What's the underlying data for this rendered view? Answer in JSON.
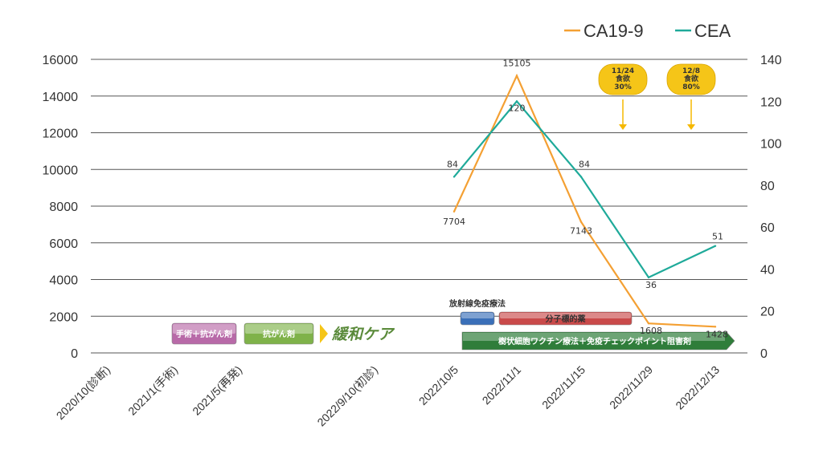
{
  "chart_data": {
    "type": "line",
    "categories": [
      "2020/10(診断)",
      "2021/1(手術)",
      "2021/5(再発)",
      "2022/9/10(初診)",
      "2022/10/5",
      "2022/11/1",
      "2022/11/15",
      "2022/11/29",
      "2022/12/13"
    ],
    "series": [
      {
        "name": "CA19-9",
        "axis": "left",
        "color": "#f4a033",
        "values": [
          null,
          null,
          null,
          null,
          7704,
          15105,
          7143,
          1608,
          1428
        ]
      },
      {
        "name": "CEA",
        "axis": "right",
        "color": "#1faa9a",
        "values": [
          null,
          null,
          null,
          null,
          84,
          120,
          84,
          36,
          51
        ]
      }
    ],
    "ylim_left": [
      0,
      16000
    ],
    "yticks_left": [
      "0",
      "2000",
      "4000",
      "6000",
      "8000",
      "10000",
      "12000",
      "14000",
      "16000"
    ],
    "ylim_right": [
      0,
      140
    ],
    "yticks_right": [
      "0",
      "20",
      "40",
      "60",
      "80",
      "100",
      "120",
      "140"
    ],
    "grid": true,
    "legend_position": "top-right",
    "annotations": [
      {
        "category": "2022/11/22",
        "lines": [
          "11/24",
          "食欲",
          "30%"
        ],
        "color": "#f5c518"
      },
      {
        "category": "2022/12/6",
        "lines": [
          "12/8",
          "食欲",
          "80%"
        ],
        "color": "#f5c518"
      }
    ],
    "treatment_bars": [
      {
        "label": "手術＋抗がん剤",
        "color": "#b86aa8"
      },
      {
        "label": "抗がん剤",
        "color": "#7fb24a"
      },
      {
        "label": "緩和ケア",
        "color": "#5a8a3a"
      },
      {
        "label": "放射線免疫療法",
        "color": "#3a6fb8"
      },
      {
        "label": "分子標的薬",
        "color": "#c94a4a"
      },
      {
        "label": "樹状細胞ワクチン療法＋免疫チェックポイント阻害剤",
        "color": "#2f7d3a"
      }
    ]
  }
}
